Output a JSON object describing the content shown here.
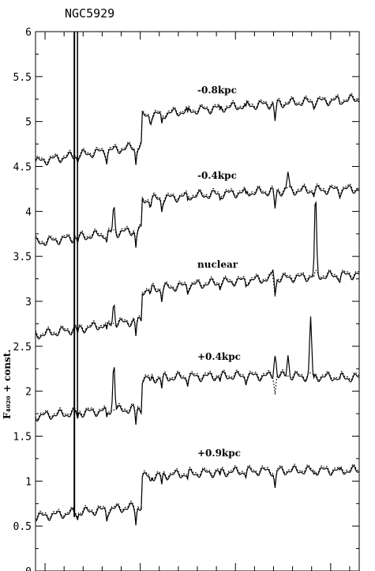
{
  "chart_data": {
    "type": "line",
    "title": "NGC5929",
    "ylabel": "F₄₀₂₀ + const.",
    "ylim": [
      0,
      6
    ],
    "yticks": [
      {
        "v": 0,
        "label": "0"
      },
      {
        "v": 0.5,
        "label": "0.5"
      },
      {
        "v": 1,
        "label": "1"
      },
      {
        "v": 1.5,
        "label": "1.5"
      },
      {
        "v": 2,
        "label": "2"
      },
      {
        "v": 2.5,
        "label": "2.5"
      },
      {
        "v": 3,
        "label": "3"
      },
      {
        "v": 3.5,
        "label": "3.5"
      },
      {
        "v": 4,
        "label": "4"
      },
      {
        "v": 4.5,
        "label": "4.5"
      },
      {
        "v": 5,
        "label": "5"
      },
      {
        "v": 5.5,
        "label": "5.5"
      },
      {
        "v": 6,
        "label": "6"
      }
    ],
    "x_ticks": 17,
    "series": [
      {
        "name": "-0.8kpc",
        "offset": 4.55,
        "end": 5.25,
        "mark": "x"
      },
      {
        "name": "-0.4kpc",
        "offset": 3.65,
        "end": 4.25,
        "mark": "o"
      },
      {
        "name": "nuclear",
        "offset": 2.62,
        "end": 3.3,
        "mark": "o"
      },
      {
        "name": "+0.4kpc",
        "offset": 1.72,
        "end": 2.15,
        "mark": "o"
      },
      {
        "name": "+0.9kpc",
        "offset": 0.6,
        "end": 1.12,
        "mark": "o"
      }
    ]
  }
}
